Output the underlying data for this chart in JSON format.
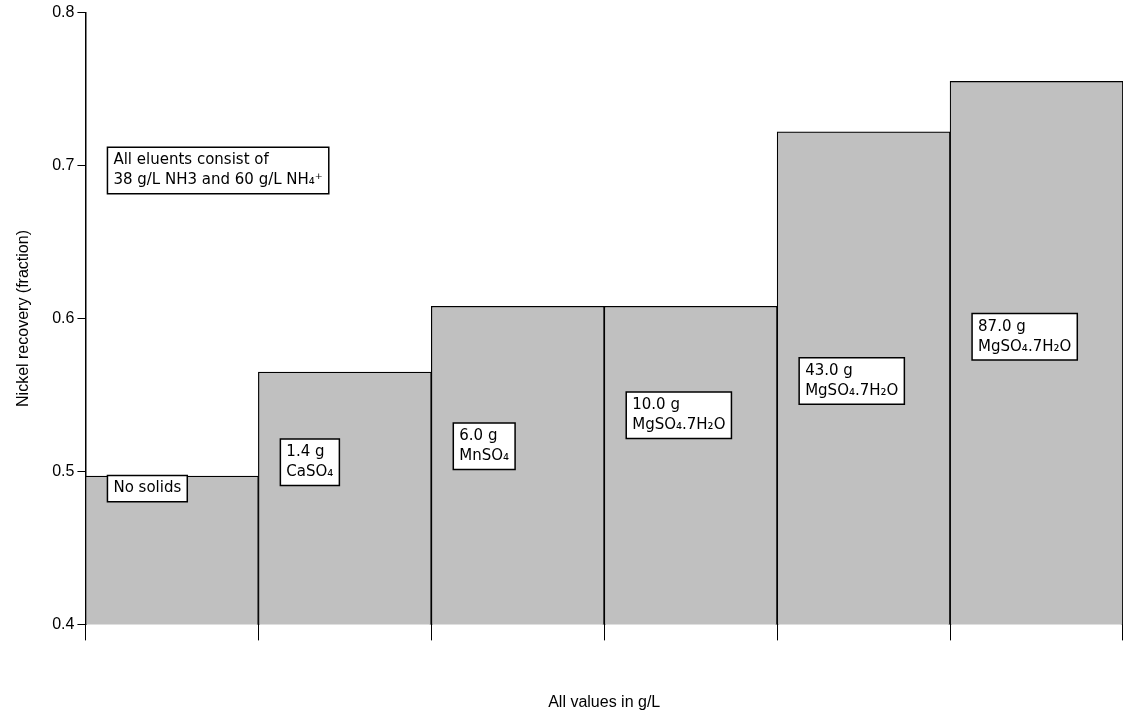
{
  "chart_data": {
    "type": "bar",
    "categories": [
      "No solids",
      "1.4 g\nCaSO₄",
      "6.0 g\nMnSO₄",
      "10.0 g\nMgSO₄.7H₂O",
      "43.0 g\nMgSO₄.7H₂O",
      "87.0 g\nMgSO₄.7H₂O"
    ],
    "values": [
      0.497,
      0.565,
      0.608,
      0.608,
      0.722,
      0.755
    ],
    "color": "#c0c0c0",
    "ylabel": "Nickel recovery (fraction)",
    "xlabel": "All values in g/L",
    "ylim": [
      0.4,
      0.8
    ],
    "yticks": [
      0.4,
      0.5,
      0.6,
      0.7,
      0.8
    ],
    "annotations": [
      "All eluents consist of\n38 g/L NH3 and 60 g/L NH₄⁺"
    ],
    "grid": false,
    "legend": false
  }
}
